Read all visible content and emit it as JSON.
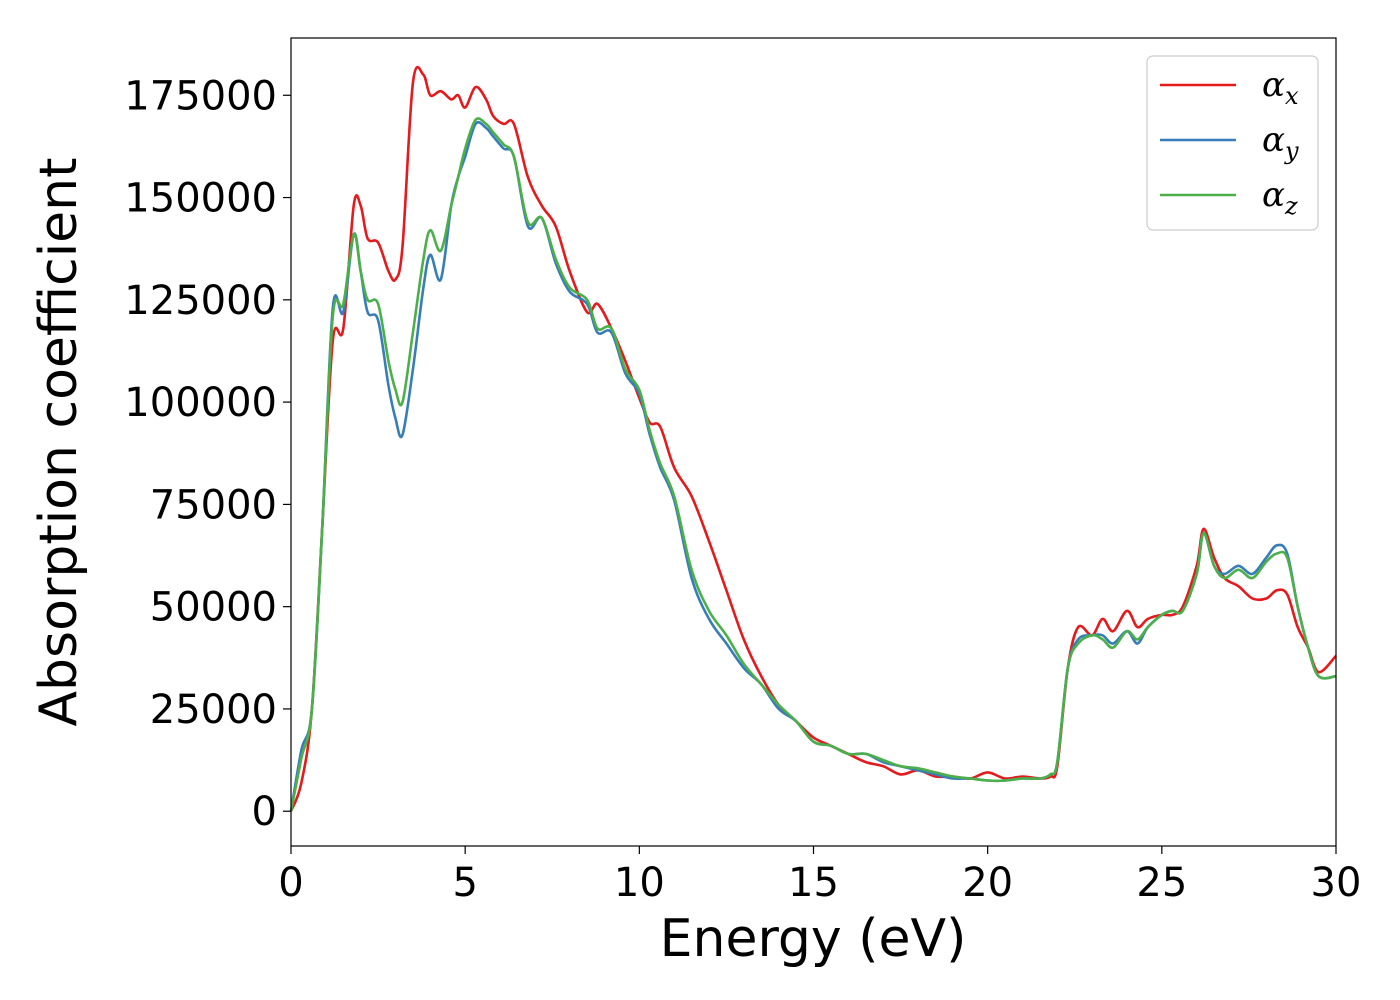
{
  "chart_data": {
    "type": "line",
    "title": "",
    "xlabel": "Energy (eV)",
    "ylabel": "Absorption coefficient",
    "xlim": [
      0,
      30
    ],
    "ylim": [
      -8500,
      189000
    ],
    "xticks": [
      0,
      5,
      10,
      15,
      20,
      25,
      30
    ],
    "yticks": [
      0,
      25000,
      50000,
      75000,
      100000,
      125000,
      150000,
      175000
    ],
    "xtick_labels": [
      "0",
      "5",
      "10",
      "15",
      "20",
      "25",
      "30"
    ],
    "ytick_labels": [
      "0",
      "25000",
      "50000",
      "75000",
      "100000",
      "125000",
      "150000",
      "175000"
    ],
    "grid": false,
    "legend_position": "top-right",
    "series": [
      {
        "name": "αx",
        "symbol": "α",
        "subscript": "x",
        "color": "#e41a1c",
        "x": [
          0,
          0.3,
          0.6,
          0.9,
          1.2,
          1.5,
          1.8,
          2.0,
          2.2,
          2.5,
          2.8,
          3.0,
          3.2,
          3.5,
          3.8,
          4.0,
          4.3,
          4.6,
          4.8,
          5.0,
          5.3,
          5.6,
          5.8,
          6.1,
          6.4,
          6.8,
          7.2,
          7.6,
          8.0,
          8.5,
          8.8,
          9.2,
          9.6,
          10.0,
          10.3,
          10.6,
          11.0,
          11.5,
          12.0,
          12.5,
          13.0,
          13.5,
          14.0,
          14.5,
          15.0,
          15.5,
          16.0,
          16.5,
          17.0,
          17.5,
          18.0,
          18.5,
          19.0,
          19.5,
          20.0,
          20.5,
          21.0,
          21.5,
          21.8,
          22.0,
          22.3,
          22.6,
          23.0,
          23.3,
          23.6,
          24.0,
          24.3,
          24.6,
          25.0,
          25.3,
          25.6,
          26.0,
          26.2,
          26.5,
          26.8,
          27.2,
          27.6,
          28.0,
          28.3,
          28.6,
          28.9,
          29.2,
          29.5,
          30.0
        ],
        "y": [
          0,
          7000,
          25000,
          70000,
          115000,
          118000,
          148000,
          148000,
          140000,
          139000,
          132000,
          130000,
          138000,
          178000,
          180000,
          175000,
          176000,
          174000,
          175000,
          172000,
          177000,
          174000,
          170000,
          168000,
          168000,
          155000,
          148000,
          143000,
          132000,
          122000,
          124000,
          118000,
          110000,
          101000,
          95000,
          94000,
          84000,
          77000,
          66000,
          54000,
          42000,
          33000,
          26000,
          22000,
          18000,
          16000,
          14000,
          12000,
          11000,
          9000,
          10000,
          8500,
          8500,
          8000,
          9500,
          8000,
          8500,
          8000,
          8500,
          11000,
          35000,
          45000,
          43000,
          47000,
          44000,
          49000,
          45000,
          47000,
          48000,
          48000,
          50000,
          60000,
          69000,
          62000,
          57000,
          55000,
          52000,
          52000,
          54000,
          53000,
          45000,
          40000,
          34000,
          38000
        ]
      },
      {
        "name": "αy",
        "symbol": "α",
        "subscript": "y",
        "color": "#377eb8",
        "x": [
          0,
          0.3,
          0.6,
          0.9,
          1.2,
          1.5,
          1.8,
          2.0,
          2.2,
          2.5,
          2.8,
          3.0,
          3.2,
          3.5,
          3.8,
          4.0,
          4.3,
          4.6,
          4.8,
          5.0,
          5.3,
          5.6,
          5.8,
          6.1,
          6.4,
          6.8,
          7.2,
          7.6,
          8.0,
          8.5,
          8.8,
          9.2,
          9.6,
          10.0,
          10.3,
          10.6,
          11.0,
          11.5,
          12.0,
          12.5,
          13.0,
          13.5,
          14.0,
          14.5,
          15.0,
          15.5,
          16.0,
          16.5,
          17.0,
          17.5,
          18.0,
          18.5,
          19.0,
          19.5,
          20.0,
          20.5,
          21.0,
          21.5,
          21.8,
          22.0,
          22.3,
          22.6,
          23.0,
          23.3,
          23.6,
          24.0,
          24.3,
          24.6,
          25.0,
          25.3,
          25.6,
          26.0,
          26.2,
          26.5,
          26.8,
          27.2,
          27.6,
          28.0,
          28.3,
          28.6,
          28.9,
          29.2,
          29.5,
          30.0
        ],
        "y": [
          0,
          15000,
          25000,
          70000,
          123000,
          122000,
          141000,
          132000,
          122000,
          120000,
          104000,
          96000,
          92000,
          108000,
          128000,
          136000,
          130000,
          148000,
          155000,
          160000,
          168000,
          167000,
          165000,
          162000,
          160000,
          143000,
          145000,
          134000,
          127000,
          124000,
          117000,
          117000,
          107000,
          102000,
          92000,
          84000,
          76000,
          57000,
          47000,
          41000,
          35000,
          31000,
          25000,
          22000,
          17000,
          16000,
          14000,
          14000,
          12000,
          11000,
          10000,
          9000,
          8000,
          8000,
          7500,
          7500,
          8000,
          8000,
          9000,
          12000,
          35000,
          42000,
          43000,
          43000,
          41000,
          44000,
          41000,
          45000,
          48000,
          49000,
          49000,
          58000,
          68000,
          60000,
          58000,
          60000,
          58000,
          62000,
          65000,
          63000,
          50000,
          40000,
          33000,
          33000
        ]
      },
      {
        "name": "αz",
        "symbol": "α",
        "subscript": "z",
        "color": "#4daf4a",
        "x": [
          0,
          0.3,
          0.6,
          0.9,
          1.2,
          1.5,
          1.8,
          2.0,
          2.2,
          2.5,
          2.8,
          3.0,
          3.2,
          3.5,
          3.8,
          4.0,
          4.3,
          4.6,
          4.8,
          5.0,
          5.3,
          5.6,
          5.8,
          6.1,
          6.4,
          6.8,
          7.2,
          7.6,
          8.0,
          8.5,
          8.8,
          9.2,
          9.6,
          10.0,
          10.3,
          10.6,
          11.0,
          11.5,
          12.0,
          12.5,
          13.0,
          13.5,
          14.0,
          14.5,
          15.0,
          15.5,
          16.0,
          16.5,
          17.0,
          17.5,
          18.0,
          18.5,
          19.0,
          19.5,
          20.0,
          20.5,
          21.0,
          21.5,
          21.8,
          22.0,
          22.3,
          22.6,
          23.0,
          23.3,
          23.6,
          24.0,
          24.3,
          24.6,
          25.0,
          25.3,
          25.6,
          26.0,
          26.2,
          26.5,
          26.8,
          27.2,
          27.6,
          28.0,
          28.3,
          28.6,
          28.9,
          29.2,
          29.5,
          30.0
        ],
        "y": [
          0,
          13000,
          25000,
          70000,
          121000,
          124000,
          141000,
          132000,
          125000,
          124000,
          110000,
          103000,
          100000,
          117000,
          135000,
          142000,
          137000,
          148000,
          155000,
          162000,
          169000,
          168000,
          166000,
          163000,
          160000,
          144000,
          145000,
          135000,
          128000,
          125000,
          118000,
          118000,
          108000,
          103000,
          93000,
          85000,
          77000,
          59000,
          49000,
          43000,
          36000,
          31000,
          26000,
          22000,
          17000,
          16000,
          14000,
          14000,
          12500,
          11000,
          10500,
          9500,
          8500,
          8000,
          7500,
          7500,
          8000,
          8000,
          9000,
          12000,
          35000,
          41000,
          43000,
          42000,
          40000,
          44000,
          42000,
          45000,
          48000,
          49000,
          49000,
          58000,
          68000,
          60000,
          57000,
          59000,
          57000,
          61000,
          63000,
          62000,
          50000,
          40000,
          33000,
          33000
        ]
      }
    ]
  }
}
